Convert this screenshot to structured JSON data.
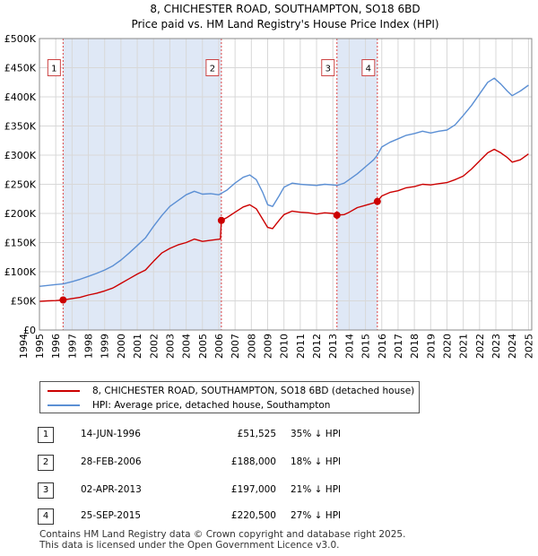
{
  "chart_data": {
    "type": "line",
    "title": "8, CHICHESTER ROAD, SOUTHAMPTON, SO18 6BD",
    "subtitle": "Price paid vs. HM Land Registry's House Price Index (HPI)",
    "xlim": [
      1995.0,
      2025.2
    ],
    "ylim": [
      0,
      500000
    ],
    "x_ticks": [
      "1994",
      "1995",
      "1996",
      "1997",
      "1998",
      "1999",
      "2000",
      "2001",
      "2002",
      "2003",
      "2004",
      "2005",
      "2006",
      "2007",
      "2008",
      "2009",
      "2010",
      "2011",
      "2012",
      "2013",
      "2014",
      "2015",
      "2016",
      "2017",
      "2018",
      "2019",
      "2020",
      "2021",
      "2022",
      "2023",
      "2024",
      "2025"
    ],
    "y_ticks": [
      {
        "value": 0,
        "label": "£0"
      },
      {
        "value": 50000,
        "label": "£50K"
      },
      {
        "value": 100000,
        "label": "£100K"
      },
      {
        "value": 150000,
        "label": "£150K"
      },
      {
        "value": 200000,
        "label": "£200K"
      },
      {
        "value": 250000,
        "label": "£250K"
      },
      {
        "value": 300000,
        "label": "£300K"
      },
      {
        "value": 350000,
        "label": "£350K"
      },
      {
        "value": 400000,
        "label": "£400K"
      },
      {
        "value": 450000,
        "label": "£450K"
      },
      {
        "value": 500000,
        "label": "£500K"
      }
    ],
    "series": [
      {
        "name": "8, CHICHESTER ROAD, SOUTHAMPTON, SO18 6BD (detached house)",
        "color": "#cc0000",
        "points": [
          [
            1995.0,
            49000
          ],
          [
            1995.5,
            50000
          ],
          [
            1996.0,
            50500
          ],
          [
            1996.45,
            51525
          ],
          [
            1997.0,
            54000
          ],
          [
            1997.5,
            56000
          ],
          [
            1998.0,
            60000
          ],
          [
            1998.5,
            63000
          ],
          [
            1999.0,
            67000
          ],
          [
            1999.5,
            72000
          ],
          [
            2000.0,
            80000
          ],
          [
            2000.5,
            88000
          ],
          [
            2001.0,
            96000
          ],
          [
            2001.5,
            103000
          ],
          [
            2002.0,
            118000
          ],
          [
            2002.5,
            132000
          ],
          [
            2003.0,
            140000
          ],
          [
            2003.5,
            146000
          ],
          [
            2004.0,
            150000
          ],
          [
            2004.5,
            156000
          ],
          [
            2005.0,
            152000
          ],
          [
            2005.5,
            154000
          ],
          [
            2006.1,
            156000
          ],
          [
            2006.16,
            188000
          ],
          [
            2006.5,
            193000
          ],
          [
            2007.0,
            202000
          ],
          [
            2007.5,
            211000
          ],
          [
            2007.9,
            215000
          ],
          [
            2008.3,
            208000
          ],
          [
            2008.7,
            190000
          ],
          [
            2009.0,
            176000
          ],
          [
            2009.3,
            174000
          ],
          [
            2009.7,
            188000
          ],
          [
            2010.0,
            198000
          ],
          [
            2010.5,
            204000
          ],
          [
            2011.0,
            202000
          ],
          [
            2011.5,
            201000
          ],
          [
            2012.0,
            199000
          ],
          [
            2012.5,
            201000
          ],
          [
            2013.0,
            200000
          ],
          [
            2013.25,
            197000
          ],
          [
            2013.7,
            198000
          ],
          [
            2014.0,
            202000
          ],
          [
            2014.5,
            210000
          ],
          [
            2015.0,
            214000
          ],
          [
            2015.5,
            218000
          ],
          [
            2015.73,
            220500
          ],
          [
            2016.0,
            230000
          ],
          [
            2016.5,
            236000
          ],
          [
            2017.0,
            239000
          ],
          [
            2017.5,
            244000
          ],
          [
            2018.0,
            246000
          ],
          [
            2018.5,
            250000
          ],
          [
            2019.0,
            249000
          ],
          [
            2019.5,
            251000
          ],
          [
            2020.0,
            253000
          ],
          [
            2020.5,
            258000
          ],
          [
            2021.0,
            264000
          ],
          [
            2021.5,
            276000
          ],
          [
            2022.0,
            290000
          ],
          [
            2022.5,
            304000
          ],
          [
            2022.9,
            310000
          ],
          [
            2023.3,
            304000
          ],
          [
            2023.7,
            296000
          ],
          [
            2024.0,
            288000
          ],
          [
            2024.5,
            292000
          ],
          [
            2025.0,
            302000
          ]
        ]
      },
      {
        "name": "HPI: Average price, detached house, Southampton",
        "color": "#5b8fd4",
        "points": [
          [
            1995.0,
            75000
          ],
          [
            1995.5,
            76500
          ],
          [
            1996.0,
            78000
          ],
          [
            1996.45,
            79000
          ],
          [
            1997.0,
            83000
          ],
          [
            1997.5,
            87000
          ],
          [
            1998.0,
            92000
          ],
          [
            1998.5,
            97000
          ],
          [
            1999.0,
            103000
          ],
          [
            1999.5,
            110000
          ],
          [
            2000.0,
            120000
          ],
          [
            2000.5,
            132000
          ],
          [
            2001.0,
            145000
          ],
          [
            2001.5,
            158000
          ],
          [
            2002.0,
            178000
          ],
          [
            2002.5,
            196000
          ],
          [
            2003.0,
            212000
          ],
          [
            2003.5,
            222000
          ],
          [
            2004.0,
            232000
          ],
          [
            2004.5,
            238000
          ],
          [
            2005.0,
            233000
          ],
          [
            2005.5,
            234000
          ],
          [
            2006.0,
            232000
          ],
          [
            2006.5,
            240000
          ],
          [
            2007.0,
            252000
          ],
          [
            2007.5,
            262000
          ],
          [
            2007.9,
            266000
          ],
          [
            2008.3,
            258000
          ],
          [
            2008.7,
            236000
          ],
          [
            2009.0,
            215000
          ],
          [
            2009.3,
            212000
          ],
          [
            2009.7,
            230000
          ],
          [
            2010.0,
            245000
          ],
          [
            2010.5,
            252000
          ],
          [
            2011.0,
            250000
          ],
          [
            2011.5,
            249000
          ],
          [
            2012.0,
            248000
          ],
          [
            2012.5,
            250000
          ],
          [
            2013.0,
            249000
          ],
          [
            2013.25,
            248000
          ],
          [
            2013.7,
            252000
          ],
          [
            2014.0,
            258000
          ],
          [
            2014.5,
            268000
          ],
          [
            2015.0,
            280000
          ],
          [
            2015.5,
            292000
          ],
          [
            2015.73,
            300000
          ],
          [
            2016.0,
            314000
          ],
          [
            2016.5,
            322000
          ],
          [
            2017.0,
            328000
          ],
          [
            2017.5,
            334000
          ],
          [
            2018.0,
            337000
          ],
          [
            2018.5,
            341000
          ],
          [
            2019.0,
            338000
          ],
          [
            2019.5,
            341000
          ],
          [
            2020.0,
            343000
          ],
          [
            2020.5,
            352000
          ],
          [
            2021.0,
            368000
          ],
          [
            2021.5,
            385000
          ],
          [
            2022.0,
            405000
          ],
          [
            2022.5,
            425000
          ],
          [
            2022.9,
            432000
          ],
          [
            2023.3,
            422000
          ],
          [
            2023.7,
            410000
          ],
          [
            2024.0,
            402000
          ],
          [
            2024.5,
            410000
          ],
          [
            2025.0,
            420000
          ]
        ]
      }
    ],
    "sales": [
      {
        "n": "1",
        "x": 1996.45,
        "price": 51525
      },
      {
        "n": "2",
        "x": 2006.16,
        "price": 188000
      },
      {
        "n": "3",
        "x": 2013.25,
        "price": 197000
      },
      {
        "n": "4",
        "x": 2015.73,
        "price": 220500
      }
    ],
    "marker_box_value": 450000,
    "shade_regions": [
      [
        1996.45,
        2006.16
      ],
      [
        2013.25,
        2015.73
      ]
    ]
  },
  "legend": {
    "property_label": "8, CHICHESTER ROAD, SOUTHAMPTON, SO18 6BD (detached house)",
    "hpi_label": "HPI: Average price, detached house, Southampton"
  },
  "transactions": [
    {
      "num": "1",
      "date": "14-JUN-1996",
      "price": "£51,525",
      "pct": "35% ↓ HPI"
    },
    {
      "num": "2",
      "date": "28-FEB-2006",
      "price": "£188,000",
      "pct": "18% ↓ HPI"
    },
    {
      "num": "3",
      "date": "02-APR-2013",
      "price": "£197,000",
      "pct": "21% ↓ HPI"
    },
    {
      "num": "4",
      "date": "25-SEP-2015",
      "price": "£220,500",
      "pct": "27% ↓ HPI"
    }
  ],
  "footer": {
    "line1": "Contains HM Land Registry data © Crown copyright and database right 2025.",
    "line2": "This data is licensed under the Open Government Licence v3.0."
  },
  "colors": {
    "property": "#cc0000",
    "hpi": "#5b8fd4",
    "shade": "#dfe8f6",
    "grid": "#d8d8d8"
  }
}
